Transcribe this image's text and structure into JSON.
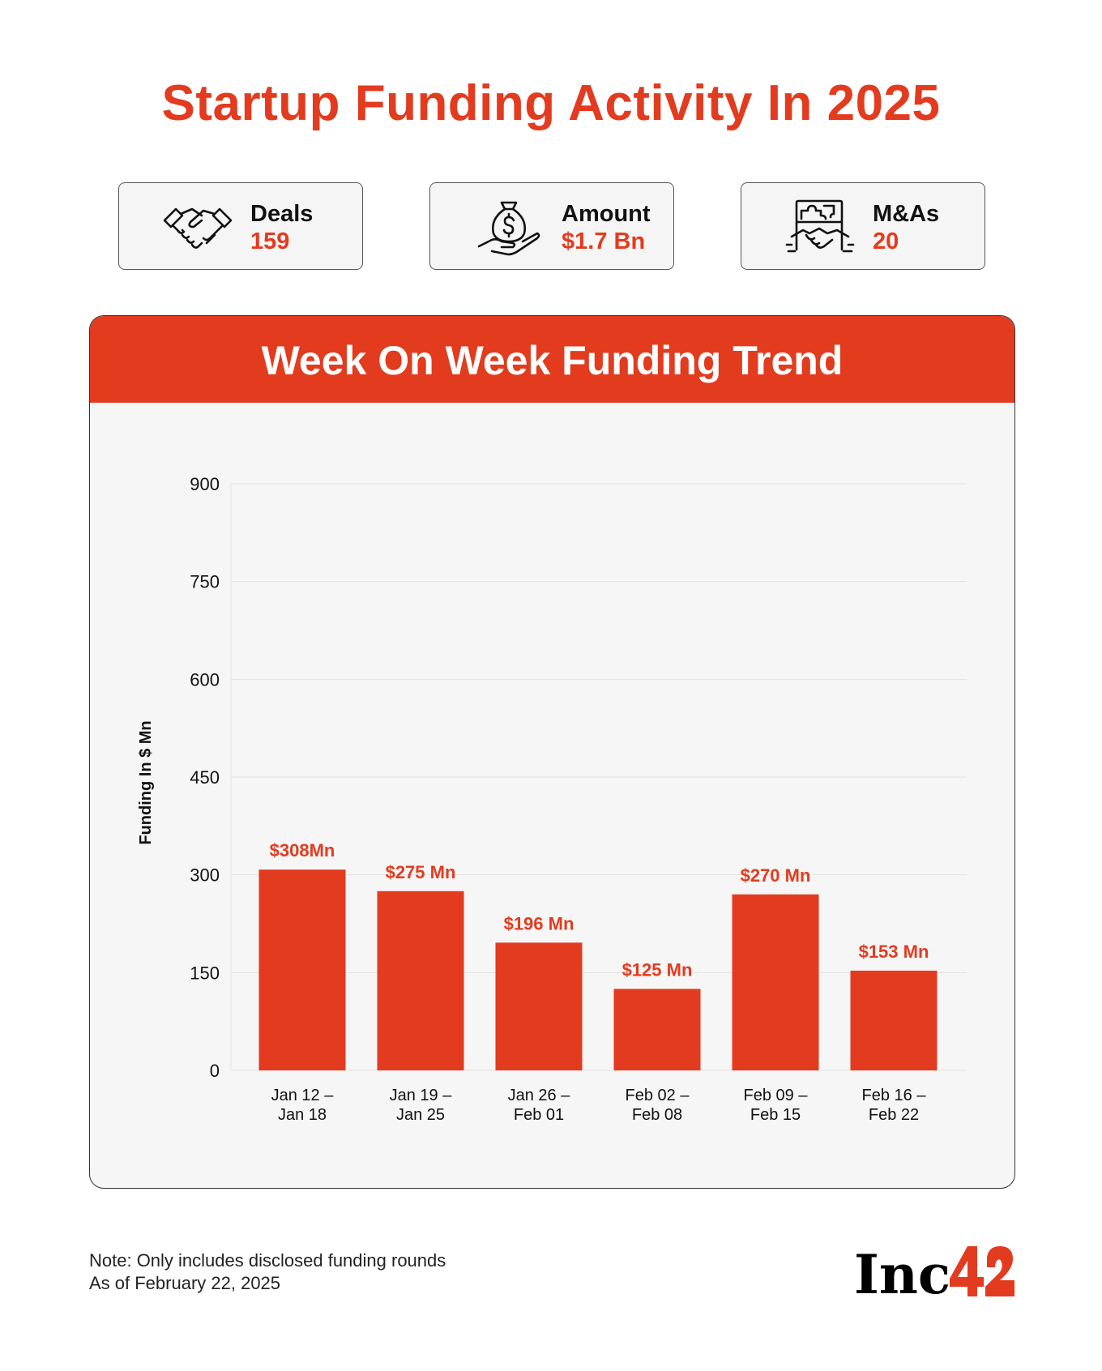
{
  "header": {
    "title": "Startup Funding Activity In 2025"
  },
  "stats": [
    {
      "label": "Deals",
      "value": "159",
      "icon": "handshake-icon"
    },
    {
      "label": "Amount",
      "value": "$1.7 Bn",
      "icon": "money-bag-hand-icon"
    },
    {
      "label": "M&As",
      "value": "20",
      "icon": "puzzle-handshake-icon"
    }
  ],
  "chart_title": "Week On Week Funding Trend",
  "chart_data": {
    "type": "bar",
    "title": "Week On Week Funding Trend",
    "xlabel": "",
    "ylabel": "Funding In $ Mn",
    "ylim": [
      0,
      900
    ],
    "yticks": [
      0,
      150,
      300,
      450,
      600,
      750,
      900
    ],
    "grid": true,
    "categories": [
      [
        "Jan 12 –",
        "Jan 18"
      ],
      [
        "Jan 19 –",
        "Jan 25"
      ],
      [
        "Jan 26 –",
        "Feb 01"
      ],
      [
        "Feb 02 –",
        "Feb 08"
      ],
      [
        "Feb 09 –",
        "Feb 15"
      ],
      [
        "Feb 16 –",
        "Feb 22"
      ]
    ],
    "values": [
      308,
      275,
      196,
      125,
      270,
      153
    ],
    "data_labels": [
      "$308Mn",
      "$275 Mn",
      "$196 Mn",
      "$125 Mn",
      "$270 Mn",
      "$153 Mn"
    ],
    "bar_color": "#e33b1f"
  },
  "footer": {
    "note": "Note: Only includes disclosed funding rounds",
    "date": "As of February 22, 2025",
    "logo_text": "Inc",
    "logo_number": "42"
  },
  "colors": {
    "accent": "#e33b1f",
    "panel": "#f6f6f6",
    "text": "#111111"
  }
}
